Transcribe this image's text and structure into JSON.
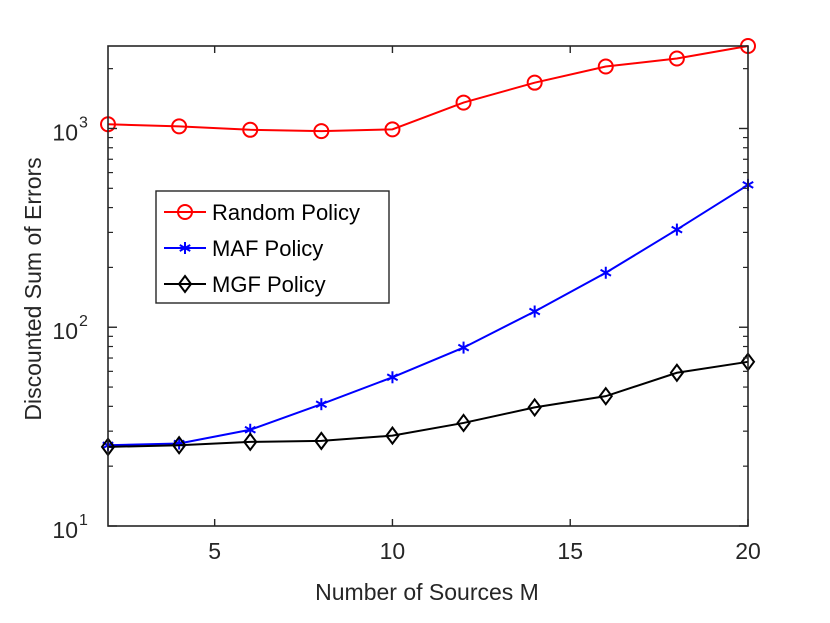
{
  "chart_data": {
    "type": "line",
    "title": "",
    "xlabel": "Number of Sources M",
    "ylabel": "Discounted Sum of Errors",
    "xlim": [
      2,
      20
    ],
    "ylim": [
      10,
      2600
    ],
    "yscale": "log",
    "grid": false,
    "legend_position": "middle-left",
    "x_ticks": [
      5,
      10,
      15,
      20
    ],
    "y_ticks": [
      {
        "value": 10,
        "base": "10",
        "exp": "1"
      },
      {
        "value": 100,
        "base": "10",
        "exp": "2"
      },
      {
        "value": 1000,
        "base": "10",
        "exp": "3"
      }
    ],
    "x": [
      2,
      4,
      6,
      8,
      10,
      12,
      14,
      16,
      18,
      20
    ],
    "series": [
      {
        "name": "Random Policy",
        "color": "#ff0000",
        "marker": "circle",
        "values": [
          1050,
          1025,
          985,
          970,
          990,
          1350,
          1700,
          2050,
          2250,
          2600
        ]
      },
      {
        "name": "MAF Policy",
        "color": "#0000ff",
        "marker": "asterisk",
        "values": [
          25.5,
          26,
          30.5,
          41,
          56,
          79,
          120,
          188,
          310,
          520
        ]
      },
      {
        "name": "MGF Policy",
        "color": "#000000",
        "marker": "diamond",
        "values": [
          25,
          25.5,
          26.5,
          26.8,
          28.5,
          33,
          39.5,
          45,
          59,
          67
        ]
      }
    ]
  }
}
